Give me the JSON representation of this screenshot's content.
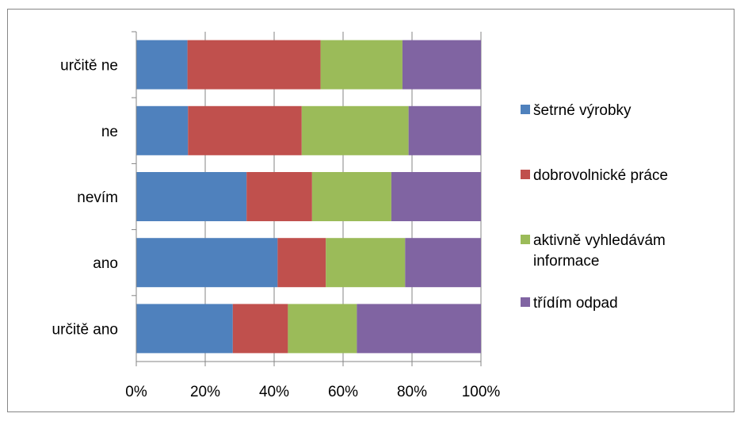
{
  "chart_data": {
    "type": "bar",
    "orientation": "horizontal",
    "stacking": "percent",
    "categories": [
      "určitě ano",
      "ano",
      "nevím",
      "ne",
      "určitě ne"
    ],
    "series": [
      {
        "name": "šetrné výrobky",
        "color": "#4F81BD",
        "values": [
          28,
          41,
          32,
          15,
          15
        ]
      },
      {
        "name": "dobrovolnické práce",
        "color": "#C0504D",
        "values": [
          16,
          14,
          19,
          33,
          39
        ]
      },
      {
        "name": "aktivně vyhledávám informace",
        "color": "#9BBB59",
        "values": [
          20,
          23,
          23,
          31,
          24
        ]
      },
      {
        "name": "třídím odpad",
        "color": "#8064A2",
        "values": [
          36,
          22,
          26,
          21,
          23
        ]
      }
    ],
    "xlim": [
      0,
      100
    ],
    "x_ticks": [
      "0%",
      "20%",
      "40%",
      "60%",
      "80%",
      "100%"
    ],
    "grid": true,
    "legend_position": "right"
  },
  "legend": {
    "lines": [
      [
        "šetrné výrobky"
      ],
      [
        "dobrovolnické práce"
      ],
      [
        "aktivně vyhledávám",
        "informace"
      ],
      [
        "třídím odpad"
      ]
    ]
  }
}
